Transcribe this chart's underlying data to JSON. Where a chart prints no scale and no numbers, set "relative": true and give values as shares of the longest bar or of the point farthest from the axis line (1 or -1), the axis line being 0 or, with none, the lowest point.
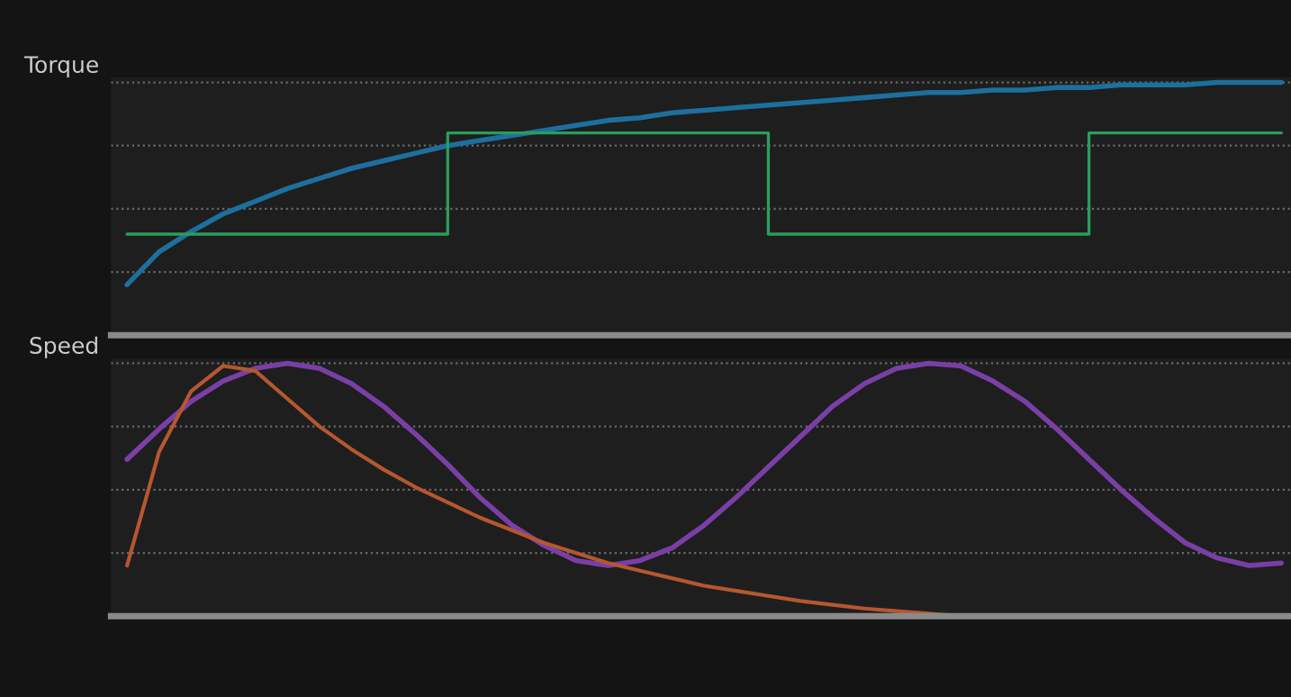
{
  "chart_data": [
    {
      "type": "line",
      "ylabel": "Torque",
      "relative": true,
      "grid": "y",
      "legend": false,
      "categories": [
        null,
        null,
        null,
        null,
        null,
        null,
        null,
        null,
        null,
        null,
        null,
        null,
        null,
        null,
        null,
        null,
        null,
        null,
        null,
        null,
        null,
        null,
        null,
        null,
        null,
        null,
        null,
        null,
        null,
        null,
        null,
        null,
        null,
        null,
        null,
        null,
        null
      ],
      "series": [
        {
          "color": "#1d6f9e",
          "values": [
            0.2,
            0.33,
            0.41,
            0.48,
            0.53,
            0.58,
            0.62,
            0.66,
            0.69,
            0.72,
            0.75,
            0.77,
            0.79,
            0.81,
            0.83,
            0.85,
            0.86,
            0.88,
            0.89,
            0.9,
            0.91,
            0.92,
            0.93,
            0.94,
            0.95,
            0.96,
            0.96,
            0.97,
            0.97,
            0.98,
            0.98,
            0.99,
            0.99,
            0.99,
            1,
            1,
            1
          ]
        },
        {
          "type": "step",
          "color": "#2a9d5c",
          "values": [
            0.4,
            0.4,
            0.4,
            0.4,
            0.4,
            0.4,
            0.4,
            0.4,
            0.4,
            0.4,
            0.8,
            0.8,
            0.8,
            0.8,
            0.8,
            0.8,
            0.8,
            0.8,
            0.8,
            0.8,
            0.4,
            0.4,
            0.4,
            0.4,
            0.4,
            0.4,
            0.4,
            0.4,
            0.4,
            0.4,
            0.8,
            0.8,
            0.8,
            0.8,
            0.8,
            0.8,
            0.8
          ]
        }
      ]
    },
    {
      "type": "line",
      "ylabel": "Speed",
      "relative": true,
      "grid": "y",
      "legend": false,
      "categories": [
        null,
        null,
        null,
        null,
        null,
        null,
        null,
        null,
        null,
        null,
        null,
        null,
        null,
        null,
        null,
        null,
        null,
        null,
        null,
        null,
        null,
        null,
        null,
        null,
        null,
        null,
        null,
        null,
        null,
        null,
        null,
        null,
        null,
        null,
        null,
        null,
        null
      ],
      "series": [
        {
          "color": "#7a3fa6",
          "values": [
            0.62,
            0.74,
            0.85,
            0.93,
            0.98,
            1.0,
            0.98,
            0.92,
            0.83,
            0.72,
            0.6,
            0.47,
            0.36,
            0.28,
            0.22,
            0.2,
            0.22,
            0.27,
            0.36,
            0.47,
            0.59,
            0.71,
            0.83,
            0.92,
            0.98,
            1.0,
            0.99,
            0.93,
            0.85,
            0.74,
            0.62,
            0.5,
            0.39,
            0.29,
            0.23,
            0.2,
            0.21
          ]
        },
        {
          "color": "#b5572f",
          "values": [
            0.2,
            0.65,
            0.89,
            0.99,
            0.97,
            0.86,
            0.75,
            0.66,
            0.58,
            0.51,
            0.45,
            0.39,
            0.34,
            0.29,
            0.25,
            0.21,
            0.18,
            0.15,
            0.12,
            0.1,
            0.08,
            0.06,
            0.045,
            0.03,
            0.02,
            0.01,
            0.0,
            null,
            null,
            null,
            null,
            null,
            null,
            null,
            null,
            null,
            null
          ]
        }
      ]
    }
  ]
}
